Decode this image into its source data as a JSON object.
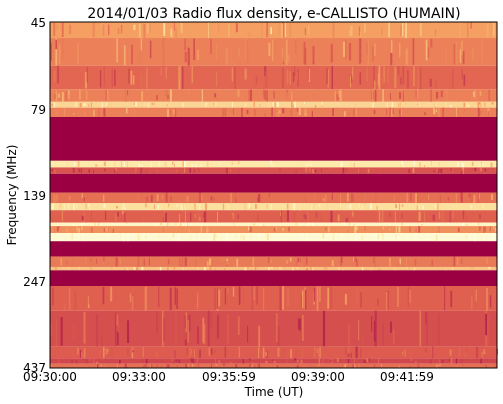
{
  "chart_data": {
    "type": "heatmap",
    "title": "2014/01/03  Radio flux density, e-CALLISTO (HUMAIN)",
    "xlabel": "Time (UT)",
    "ylabel": "Frequency (MHz)",
    "x_ticks": [
      "09:30:00",
      "09:33:00",
      "09:35:59",
      "09:39:00",
      "09:41:59"
    ],
    "y_ticks": [
      "45",
      "79",
      "139",
      "247",
      "437"
    ],
    "y_range_mhz": [
      45,
      437
    ],
    "colormap": [
      "#9a0042",
      "#c0304c",
      "#e0604f",
      "#f5a062",
      "#fde7a4",
      "#ffffe0"
    ],
    "frequency_bands": [
      {
        "from_mhz": 45,
        "to_mhz": 50,
        "intensity": 0.6
      },
      {
        "from_mhz": 50,
        "to_mhz": 60,
        "intensity": 0.5
      },
      {
        "from_mhz": 60,
        "to_mhz": 70,
        "intensity": 0.42
      },
      {
        "from_mhz": 70,
        "to_mhz": 76,
        "intensity": 0.5
      },
      {
        "from_mhz": 76,
        "to_mhz": 79,
        "intensity": 0.75
      },
      {
        "from_mhz": 79,
        "to_mhz": 84,
        "intensity": 0.5
      },
      {
        "from_mhz": 84,
        "to_mhz": 112,
        "intensity": 0.0
      },
      {
        "from_mhz": 112,
        "to_mhz": 117,
        "intensity": 0.82
      },
      {
        "from_mhz": 117,
        "to_mhz": 122,
        "intensity": 0.35
      },
      {
        "from_mhz": 122,
        "to_mhz": 138,
        "intensity": 0.0
      },
      {
        "from_mhz": 138,
        "to_mhz": 148,
        "intensity": 0.45
      },
      {
        "from_mhz": 148,
        "to_mhz": 155,
        "intensity": 0.78
      },
      {
        "from_mhz": 155,
        "to_mhz": 168,
        "intensity": 0.4
      },
      {
        "from_mhz": 168,
        "to_mhz": 172,
        "intensity": 0.92
      },
      {
        "from_mhz": 172,
        "to_mhz": 180,
        "intensity": 0.55
      },
      {
        "from_mhz": 180,
        "to_mhz": 190,
        "intensity": 0.96
      },
      {
        "from_mhz": 190,
        "to_mhz": 210,
        "intensity": 0.0
      },
      {
        "from_mhz": 210,
        "to_mhz": 225,
        "intensity": 0.48
      },
      {
        "from_mhz": 225,
        "to_mhz": 230,
        "intensity": 0.7
      },
      {
        "from_mhz": 230,
        "to_mhz": 255,
        "intensity": 0.0
      },
      {
        "from_mhz": 255,
        "to_mhz": 300,
        "intensity": 0.4
      },
      {
        "from_mhz": 300,
        "to_mhz": 380,
        "intensity": 0.33
      },
      {
        "from_mhz": 380,
        "to_mhz": 410,
        "intensity": 0.38
      },
      {
        "from_mhz": 410,
        "to_mhz": 425,
        "intensity": 0.3
      },
      {
        "from_mhz": 425,
        "to_mhz": 437,
        "intensity": 0.45
      }
    ]
  }
}
